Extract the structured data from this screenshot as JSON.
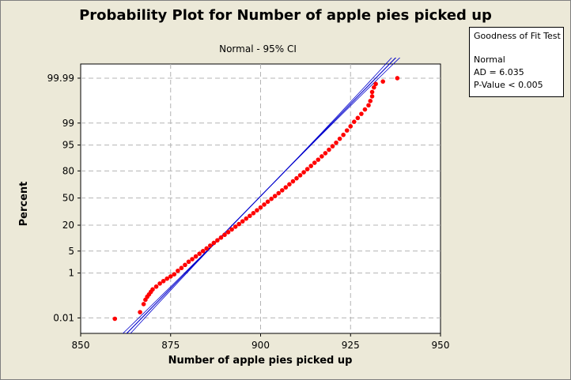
{
  "chart_data": {
    "type": "scatter",
    "title": "Probability Plot for Number of apple pies picked up",
    "subtitle": "Normal - 95% CI",
    "xlabel": "Number of apple pies picked up",
    "ylabel": "Percent",
    "xlim": [
      850,
      950
    ],
    "x_ticks": [
      850,
      875,
      900,
      925,
      950
    ],
    "y_scale": "normal-probability",
    "y_ticks": [
      "0.01",
      "1",
      "5",
      "20",
      "50",
      "80",
      "95",
      "99",
      "99.99"
    ],
    "grid": true,
    "colors": {
      "points": "#ff0000",
      "fit_line": "#0000cc",
      "ci_bands": "#0000cc",
      "plot_bg": "#ffffff",
      "page_bg": "#ece9d8"
    },
    "fit_line": {
      "x_at_0_01": 867,
      "x_at_99_99": 932
    },
    "series": [
      {
        "values": [
          [
            859.5,
            0.009
          ],
          [
            866.5,
            0.02
          ],
          [
            867.5,
            0.05
          ],
          [
            868.0,
            0.08
          ],
          [
            868.5,
            0.11
          ],
          [
            869.0,
            0.14
          ],
          [
            869.5,
            0.18
          ],
          [
            870.0,
            0.23
          ],
          [
            871.0,
            0.3
          ],
          [
            872.0,
            0.4
          ],
          [
            873.0,
            0.5
          ],
          [
            874.0,
            0.62
          ],
          [
            875.0,
            0.75
          ],
          [
            876.0,
            0.9
          ],
          [
            877.0,
            1.2
          ],
          [
            878.0,
            1.5
          ],
          [
            879.0,
            1.9
          ],
          [
            880.0,
            2.4
          ],
          [
            881.0,
            2.9
          ],
          [
            882.0,
            3.5
          ],
          [
            883.0,
            4.2
          ],
          [
            884.0,
            5.0
          ],
          [
            885.0,
            5.9
          ],
          [
            886.0,
            7.0
          ],
          [
            887.0,
            8.2
          ],
          [
            888.0,
            9.5
          ],
          [
            889.0,
            11.0
          ],
          [
            890.0,
            12.7
          ],
          [
            891.0,
            14.5
          ],
          [
            892.0,
            16.5
          ],
          [
            893.0,
            18.7
          ],
          [
            894.0,
            21.0
          ],
          [
            895.0,
            23.5
          ],
          [
            896.0,
            26.2
          ],
          [
            897.0,
            29.0
          ],
          [
            898.0,
            32.0
          ],
          [
            899.0,
            35.2
          ],
          [
            900.0,
            38.5
          ],
          [
            901.0,
            42.0
          ],
          [
            902.0,
            45.5
          ],
          [
            903.0,
            49.0
          ],
          [
            904.0,
            52.5
          ],
          [
            905.0,
            56.0
          ],
          [
            906.0,
            59.5
          ],
          [
            907.0,
            63.0
          ],
          [
            908.0,
            66.5
          ],
          [
            909.0,
            69.8
          ],
          [
            910.0,
            73.0
          ],
          [
            911.0,
            76.0
          ],
          [
            912.0,
            78.8
          ],
          [
            913.0,
            81.5
          ],
          [
            914.0,
            84.0
          ],
          [
            915.0,
            86.3
          ],
          [
            916.0,
            88.3
          ],
          [
            917.0,
            90.2
          ],
          [
            918.0,
            91.8
          ],
          [
            919.0,
            93.3
          ],
          [
            920.0,
            94.6
          ],
          [
            921.0,
            95.7
          ],
          [
            922.0,
            96.7
          ],
          [
            923.0,
            97.5
          ],
          [
            924.0,
            98.2
          ],
          [
            925.0,
            98.7
          ],
          [
            926.0,
            99.1
          ],
          [
            927.0,
            99.35
          ],
          [
            928.0,
            99.55
          ],
          [
            929.0,
            99.7
          ],
          [
            930.0,
            99.8
          ],
          [
            930.5,
            99.87
          ],
          [
            931.0,
            99.92
          ],
          [
            931.0,
            99.95
          ],
          [
            931.5,
            99.97
          ],
          [
            932.0,
            99.98
          ],
          [
            934.0,
            99.985
          ],
          [
            938.0,
            99.99
          ]
        ]
      }
    ]
  },
  "gof": {
    "heading": "Goodness of Fit Test",
    "dist": "Normal",
    "ad": "AD = 6.035",
    "pvalue": "P-Value < 0.005"
  }
}
